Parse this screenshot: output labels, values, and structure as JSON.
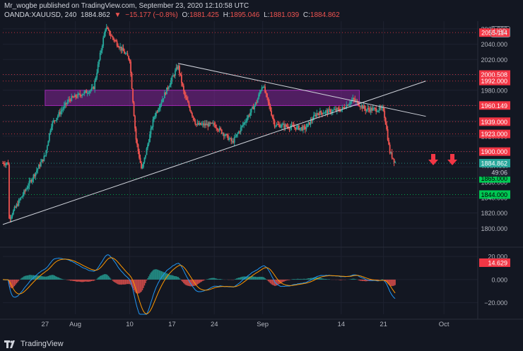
{
  "header": {
    "line1": "Mr_wogbe published on TradingView.com, September 23, 2020 12:10:58 UTC",
    "symbol": "OANDA:XAUUSD, 240",
    "last": "1884.862",
    "change": "−15.177 (−0.8%)",
    "o_label": "O:",
    "o": "1881.425",
    "h_label": "H:",
    "h": "1895.046",
    "l_label": "L:",
    "l": "1881.039",
    "c_label": "C:",
    "c": "1884.862"
  },
  "currency": "USD",
  "footer": {
    "brand": "TradingView"
  },
  "colors": {
    "bg": "#131722",
    "up": "#26a69a",
    "down": "#ef5350",
    "zone": "#9c27b0",
    "macd": "#2196f3",
    "signal": "#ff9800"
  },
  "chart_data": {
    "type": "candlestick",
    "title": "OANDA:XAUUSD, 240",
    "ylim": [
      1780,
      2070
    ],
    "y_ticks": [
      1800,
      1820,
      1840,
      1860,
      1880,
      1900,
      1920,
      1940,
      1960,
      1980,
      2000,
      2020,
      2040,
      2060
    ],
    "y_tick_labels": [
      "1800.000",
      "1820.000",
      "1840.000",
      "1860.000",
      "1880.000",
      "1900.000",
      "1920.000",
      "1940.000",
      "1960.000",
      "1980.000",
      "2000.000",
      "2020.000",
      "2040.000",
      "2060.000"
    ],
    "x_ticks": [
      "27",
      "Aug",
      "10",
      "17",
      "24",
      "Sep",
      "14",
      "21",
      "Oct"
    ],
    "price_path": [
      {
        "t": "Jul 21",
        "v": 1812
      },
      {
        "t": "Jul 27",
        "v": 1895
      },
      {
        "t": "Jul 28",
        "v": 1935
      },
      {
        "t": "Jul 31",
        "v": 1968
      },
      {
        "t": "Aug 4",
        "v": 1982
      },
      {
        "t": "Aug 6",
        "v": 2062
      },
      {
        "t": "Aug 7",
        "v": 2050
      },
      {
        "t": "Aug 10",
        "v": 2020
      },
      {
        "t": "Aug 11",
        "v": 1918
      },
      {
        "t": "Aug 12",
        "v": 1875
      },
      {
        "t": "Aug 14",
        "v": 1945
      },
      {
        "t": "Aug 18",
        "v": 2012
      },
      {
        "t": "Aug 19",
        "v": 1975
      },
      {
        "t": "Aug 21",
        "v": 1935
      },
      {
        "t": "Aug 24",
        "v": 1935
      },
      {
        "t": "Aug 26",
        "v": 1920
      },
      {
        "t": "Aug 27",
        "v": 1912
      },
      {
        "t": "Aug 31",
        "v": 1965
      },
      {
        "t": "Sep 1",
        "v": 1988
      },
      {
        "t": "Sep 3",
        "v": 1935
      },
      {
        "t": "Sep 8",
        "v": 1930
      },
      {
        "t": "Sep 10",
        "v": 1950
      },
      {
        "t": "Sep 14",
        "v": 1955
      },
      {
        "t": "Sep 16",
        "v": 1968
      },
      {
        "t": "Sep 18",
        "v": 1955
      },
      {
        "t": "Sep 21",
        "v": 1955
      },
      {
        "t": "Sep 21b",
        "v": 1930
      },
      {
        "t": "Sep 22",
        "v": 1900
      },
      {
        "t": "Sep 23",
        "v": 1885
      }
    ],
    "levels": [
      {
        "label": "2055.114",
        "value": 2055.114,
        "color": "#f23645"
      },
      {
        "label": "2000.508",
        "value": 2000.508,
        "color": "#f23645"
      },
      {
        "label": "1992.000",
        "value": 1992.0,
        "color": "#f23645"
      },
      {
        "label": "1960.149",
        "value": 1960.149,
        "color": "#f23645"
      },
      {
        "label": "1939.000",
        "value": 1939.0,
        "color": "#f23645"
      },
      {
        "label": "1923.000",
        "value": 1923.0,
        "color": "#f23645"
      },
      {
        "label": "1900.000",
        "value": 1900.0,
        "color": "#f23645"
      },
      {
        "label": "1884.862",
        "value": 1884.862,
        "color": "#26a69a"
      },
      {
        "label": "1865.000",
        "value": 1865.0,
        "color": "#00c853"
      },
      {
        "label": "1844.000",
        "value": 1844.0,
        "color": "#00c853"
      }
    ],
    "countdown": "49:06",
    "zone": {
      "from_t": "Jul 27",
      "to_t": "Sep 17",
      "low": 1960,
      "high": 1980
    },
    "trendlines": [
      {
        "from": {
          "t": "Jul 20",
          "v": 1805
        },
        "to": {
          "t": "Sep 28",
          "v": 1992
        }
      },
      {
        "from": {
          "t": "Aug 18",
          "v": 2015
        },
        "to": {
          "t": "Sep 28",
          "v": 1946
        }
      }
    ],
    "arrows": [
      "down",
      "down"
    ],
    "macd": {
      "ylim": [
        -30,
        25
      ],
      "y_ticks": [
        20,
        0,
        -20
      ],
      "y_tick_labels": [
        "20.000",
        "0.000",
        "−20.000"
      ],
      "value_label": "14.629"
    }
  }
}
